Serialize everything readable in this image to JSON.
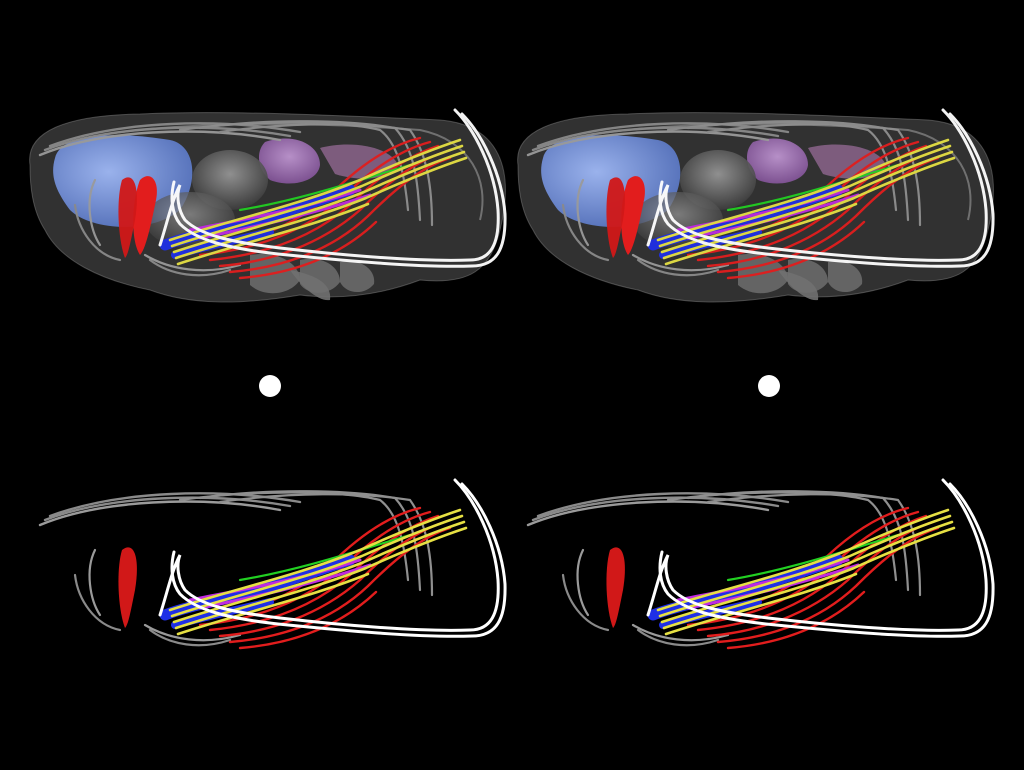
{
  "scene": {
    "description_free": true,
    "layout": "stereo-pair",
    "panels": [
      "surface-with-tracts-left",
      "surface-with-tracts-right",
      "tracts-only-left",
      "tracts-only-right"
    ]
  },
  "colors": {
    "background": "#000000",
    "brain_surface": "#7a7a7a",
    "frontal_lobe": "#7f9ad6",
    "thalamus_region": "#a07ab8",
    "tract_yellow": "#e6e043",
    "tract_red": "#e21d1d",
    "tract_blue": "#1f2fe6",
    "tract_magenta": "#c02ae0",
    "tract_green": "#22d022",
    "tract_white": "#ffffff",
    "tract_gray": "#9a9a9a",
    "fixation_dot": "#ffffff"
  }
}
